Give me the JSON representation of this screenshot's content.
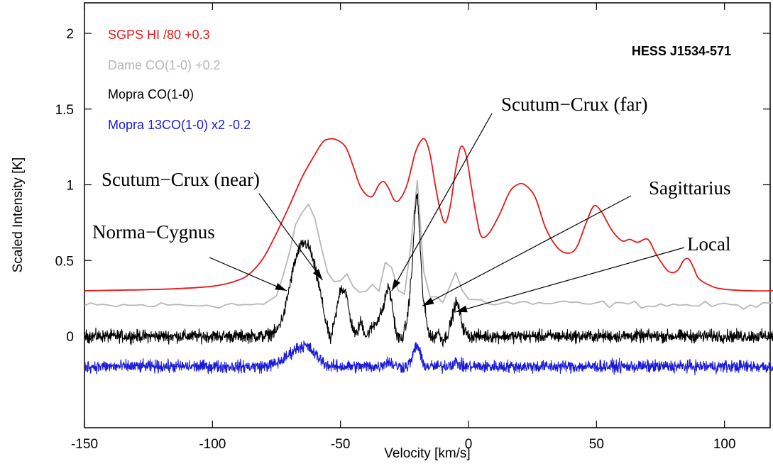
{
  "chart_data": {
    "type": "line",
    "title": "HESS J1534-571",
    "xlabel": "Velocity [km/s]",
    "ylabel": "Scaled Intensity [K]",
    "xlim": [
      -150,
      120
    ],
    "ylim": [
      -0.5,
      2.2
    ],
    "grid": false,
    "legend_position": "top-left",
    "x_ticks": [
      -150,
      -100,
      -50,
      0,
      50,
      100
    ],
    "x_tick_labels": [
      "-150",
      "-100",
      "-50",
      "0",
      "50",
      "100"
    ],
    "y_ticks": [
      0,
      0.5,
      1,
      1.5,
      2
    ],
    "y_tick_labels": [
      "0",
      "0.5",
      "1",
      "1.5",
      "2"
    ],
    "series": [
      {
        "name": "SGPS HI /80 +0.3",
        "color": "#e8191b",
        "noise": 0,
        "offset": 0,
        "x": [
          -150,
          -120,
          -100,
          -90,
          -85,
          -80,
          -75,
          -70,
          -65,
          -60,
          -57,
          -55,
          -52,
          -48,
          -45,
          -42,
          -38,
          -35,
          -33,
          -31,
          -29,
          -27,
          -24,
          -21,
          -19,
          -17,
          -15,
          -13,
          -11,
          -9,
          -7,
          -5,
          -3,
          -1,
          1,
          3,
          5,
          8,
          12,
          16,
          19,
          22,
          26,
          30,
          34,
          38,
          42,
          46,
          49,
          52,
          56,
          60,
          63,
          66,
          70,
          73,
          76,
          78,
          80,
          82,
          84,
          86,
          88,
          90,
          95,
          100,
          110,
          120
        ],
        "y": [
          0.3,
          0.31,
          0.33,
          0.37,
          0.42,
          0.52,
          0.68,
          0.86,
          1.05,
          1.2,
          1.28,
          1.3,
          1.3,
          1.25,
          1.12,
          0.98,
          0.92,
          1.0,
          1.02,
          0.97,
          0.9,
          0.9,
          1.0,
          1.2,
          1.28,
          1.3,
          1.2,
          1.0,
          0.83,
          0.75,
          0.87,
          1.1,
          1.25,
          1.2,
          1.0,
          0.8,
          0.66,
          0.68,
          0.8,
          0.95,
          1.0,
          1.0,
          0.92,
          0.72,
          0.6,
          0.55,
          0.58,
          0.75,
          0.86,
          0.82,
          0.7,
          0.63,
          0.64,
          0.62,
          0.64,
          0.55,
          0.47,
          0.43,
          0.42,
          0.44,
          0.5,
          0.51,
          0.45,
          0.38,
          0.33,
          0.31,
          0.3,
          0.3
        ]
      },
      {
        "name": "Dame CO(1-0) +0.2",
        "color": "#b7b7b7",
        "noise": 0.02,
        "offset": 0,
        "x": [
          -150,
          -80,
          -75,
          -72,
          -70,
          -68,
          -66,
          -64,
          -62,
          -60,
          -58,
          -56,
          -54,
          -52,
          -50,
          -48,
          -46,
          -44,
          -42,
          -40,
          -38,
          -36,
          -34,
          -33,
          -32,
          -31,
          -30,
          -28,
          -26,
          -24,
          -22,
          -21,
          -20,
          -19,
          -18,
          -16,
          -14,
          -12,
          -10,
          -8,
          -6,
          -5,
          -4,
          -2,
          0,
          2,
          5,
          10,
          120
        ],
        "y": [
          0.2,
          0.21,
          0.26,
          0.4,
          0.55,
          0.7,
          0.8,
          0.85,
          0.88,
          0.78,
          0.62,
          0.48,
          0.38,
          0.32,
          0.36,
          0.45,
          0.36,
          0.27,
          0.28,
          0.3,
          0.36,
          0.3,
          0.3,
          0.4,
          0.6,
          0.62,
          0.45,
          0.3,
          0.26,
          0.29,
          0.7,
          1.0,
          1.04,
          0.8,
          0.5,
          0.3,
          0.24,
          0.26,
          0.22,
          0.3,
          0.4,
          0.42,
          0.35,
          0.28,
          0.25,
          0.24,
          0.23,
          0.22,
          0.2
        ]
      },
      {
        "name": "Mopra CO(1-0)",
        "color": "#000000",
        "noise": 0.035,
        "offset": 0,
        "x": [
          -150,
          -80,
          -75,
          -72,
          -70,
          -68,
          -66,
          -64,
          -62,
          -60,
          -58,
          -56,
          -54,
          -52,
          -50,
          -48,
          -46,
          -44,
          -42,
          -40,
          -38,
          -35,
          -33,
          -32,
          -31,
          -30,
          -28,
          -26,
          -24,
          -22,
          -21,
          -20,
          -19,
          -18,
          -16,
          -14,
          -12,
          -10,
          -8,
          -6,
          -5,
          -4,
          -2,
          0,
          5,
          120
        ],
        "y": [
          0.0,
          0.0,
          0.03,
          0.15,
          0.32,
          0.48,
          0.58,
          0.62,
          0.58,
          0.45,
          0.3,
          0.12,
          -0.03,
          0.12,
          0.32,
          0.3,
          0.1,
          0.0,
          0.1,
          0.0,
          0.05,
          0.12,
          0.2,
          0.3,
          0.32,
          0.22,
          0.0,
          -0.02,
          0.1,
          0.45,
          0.8,
          0.95,
          0.65,
          0.3,
          0.05,
          -0.02,
          0.03,
          -0.03,
          0.02,
          0.15,
          0.22,
          0.2,
          0.05,
          0.0,
          0.0,
          0.0
        ]
      },
      {
        "name": "Mopra 13CO(1-0) x2 -0.2",
        "color": "#1c1cd8",
        "noise": 0.035,
        "offset": 0,
        "x": [
          -150,
          -80,
          -75,
          -72,
          -70,
          -68,
          -66,
          -64,
          -62,
          -60,
          -58,
          -56,
          -54,
          -52,
          -48,
          -44,
          -40,
          -35,
          -33,
          -32,
          -31,
          -30,
          -28,
          -24,
          -22,
          -21,
          -20,
          -19,
          -18,
          -16,
          -10,
          -6,
          -5,
          -4,
          -2,
          0,
          120
        ],
        "y": [
          -0.2,
          -0.2,
          -0.18,
          -0.15,
          -0.12,
          -0.09,
          -0.07,
          -0.06,
          -0.08,
          -0.12,
          -0.15,
          -0.18,
          -0.2,
          -0.2,
          -0.2,
          -0.2,
          -0.2,
          -0.2,
          -0.18,
          -0.17,
          -0.17,
          -0.18,
          -0.2,
          -0.2,
          -0.15,
          -0.08,
          -0.06,
          -0.1,
          -0.18,
          -0.2,
          -0.2,
          -0.18,
          -0.17,
          -0.18,
          -0.2,
          -0.2,
          -0.2
        ]
      }
    ],
    "annotations": [
      {
        "text": "Norma−Cygnus",
        "arrow_to": [
          -71,
          0.3
        ]
      },
      {
        "text": "Scutum−Crux (near)",
        "arrow_to": [
          -57,
          0.37
        ]
      },
      {
        "text": "Scutum−Crux (far)",
        "arrow_to": [
          -30,
          0.3
        ]
      },
      {
        "text": "Sagittarius",
        "arrow_to": [
          -18,
          0.2
        ]
      },
      {
        "text": "Local",
        "arrow_to": [
          -5,
          0.16
        ]
      }
    ]
  }
}
